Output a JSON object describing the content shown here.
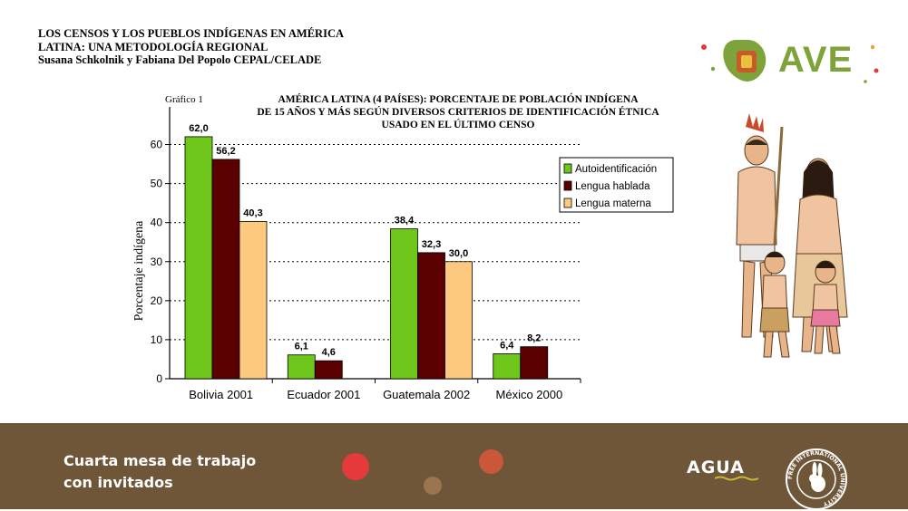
{
  "header": {
    "title_line1": "LOS CENSOS Y LOS PUEBLOS INDÍGENAS EN AMÉRICA",
    "title_line2": "LATINA: UNA METODOLOGÍA REGIONAL",
    "authors": "Susana Schkolnik y Fabiana Del Popolo  CEPAL/CELADE"
  },
  "logo": {
    "text": "AVE",
    "color": "#7ea33a"
  },
  "chart_caption": "Gráfico 1",
  "chart_title": {
    "line1": "AMÉRICA LATINA (4 PAÍSES): PORCENTAJE DE POBLACIÓN INDÍGENA",
    "line2": "DE 15 AÑOS Y MÁS SEGÚN DIVERSOS CRITERIOS DE IDENTIFICACIÓN ÉTNICA",
    "line3": "USADO EN EL ÚLTIMO CENSO"
  },
  "chart_data": {
    "type": "bar",
    "categories": [
      "Bolivia 2001",
      "Ecuador 2001",
      "Guatemala 2002",
      "México 2000"
    ],
    "series": [
      {
        "name": "Autoidentificación",
        "color": "#6fc71c",
        "values": [
          62.0,
          6.1,
          38.4,
          6.4
        ],
        "labels": [
          "62,0",
          "6,1",
          "38,4",
          "6,4"
        ]
      },
      {
        "name": "Lengua hablada",
        "color": "#5a0000",
        "values": [
          56.2,
          4.6,
          32.3,
          8.2
        ],
        "labels": [
          "56,2",
          "4,6",
          "32,3",
          "8,2"
        ]
      },
      {
        "name": "Lengua materna",
        "color": "#fcc97e",
        "values": [
          40.3,
          null,
          30.0,
          null
        ],
        "labels": [
          "40,3",
          "",
          "30,0",
          ""
        ]
      }
    ],
    "ylabel": "Porcentaje indígena",
    "ylim": [
      0,
      65
    ],
    "yticks": [
      0,
      10,
      20,
      30,
      40,
      50,
      60
    ],
    "grid": true,
    "legend_position": "top-right"
  },
  "footer": {
    "line1": "Cuarta mesa de trabajo",
    "line2": "con invitados",
    "agua_logo": "AGUA",
    "seal_text": "FREE INTERNATIONAL UNIVERSITY"
  },
  "colors": {
    "footer_bg": "#6f5639",
    "dot_red": "#e53a3a",
    "dot_orange": "#c9583a",
    "dot_brown": "#9b7550"
  }
}
